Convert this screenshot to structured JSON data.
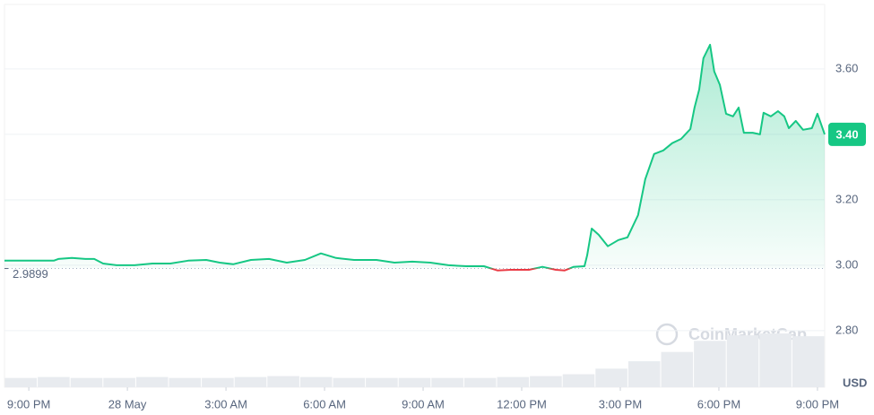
{
  "chart_data": {
    "type": "line",
    "x": [
      -0.74,
      0.76,
      0.9,
      1.31,
      1.72,
      1.99,
      2.26,
      2.67,
      3.22,
      3.76,
      4.31,
      4.85,
      5.4,
      5.81,
      6.22,
      6.76,
      7.31,
      7.85,
      8.4,
      8.89,
      9.35,
      9.9,
      10.58,
      11.13,
      11.67,
      12.22,
      12.77,
      13.31,
      13.85,
      14.26,
      14.67,
      15.22,
      15.63,
      16.04,
      16.31,
      16.58,
      16.91,
      16.99,
      17.13,
      17.34,
      17.62,
      17.94,
      18.22,
      18.54,
      18.76,
      19.03,
      19.31,
      19.58,
      19.85,
      20.13,
      20.26,
      20.4,
      20.53,
      20.73,
      20.86,
      21.03,
      21.22,
      21.43,
      21.6,
      21.76,
      22.03,
      22.25,
      22.36,
      22.58,
      22.8,
      22.99,
      23.13,
      23.34,
      23.56,
      23.83,
      24.0,
      24.22
    ],
    "series": [
      {
        "color": "#16c784",
        "down_color": "#ea3943",
        "values": [
          3.014,
          3.014,
          3.019,
          3.022,
          3.019,
          3.019,
          3.005,
          3.0,
          3.0,
          3.005,
          3.005,
          3.014,
          3.016,
          3.008,
          3.003,
          3.016,
          3.019,
          3.008,
          3.016,
          3.036,
          3.022,
          3.016,
          3.016,
          3.008,
          3.011,
          3.008,
          3.0,
          2.997,
          2.997,
          2.984,
          2.986,
          2.986,
          2.995,
          2.986,
          2.984,
          2.995,
          2.997,
          3.03,
          3.112,
          3.093,
          3.058,
          3.077,
          3.085,
          3.153,
          3.263,
          3.34,
          3.351,
          3.373,
          3.386,
          3.416,
          3.482,
          3.537,
          3.633,
          3.674,
          3.592,
          3.551,
          3.463,
          3.455,
          3.482,
          3.405,
          3.405,
          3.4,
          3.466,
          3.455,
          3.471,
          3.455,
          3.419,
          3.441,
          3.414,
          3.419,
          3.463,
          3.4
        ]
      }
    ],
    "volume": {
      "color": "#e8ebef",
      "values": [
        10,
        11,
        10,
        10,
        11,
        10,
        10,
        11,
        12,
        11,
        10,
        10,
        10,
        10,
        10,
        11,
        12,
        14,
        20,
        28,
        38,
        50,
        56,
        58,
        55
      ]
    },
    "baseline": 2.9899,
    "current_price": {
      "value": 3.4,
      "label": "3.40"
    },
    "xlim": [
      -0.74,
      24.22
    ],
    "xticks": [
      {
        "value": 0,
        "label": "9:00 PM"
      },
      {
        "value": 3,
        "label": "28 May"
      },
      {
        "value": 6,
        "label": "3:00 AM"
      },
      {
        "value": 9,
        "label": "6:00 AM"
      },
      {
        "value": 12,
        "label": "9:00 AM"
      },
      {
        "value": 15,
        "label": "12:00 PM"
      },
      {
        "value": 18,
        "label": "3:00 PM"
      },
      {
        "value": 21,
        "label": "6:00 PM"
      },
      {
        "value": 24,
        "label": "9:00 PM"
      }
    ],
    "ylim": [
      2.627,
      3.797
    ],
    "yticks": [
      {
        "value": 2.8,
        "label": "2.80"
      },
      {
        "value": 3.0,
        "label": "3.00"
      },
      {
        "value": 3.2,
        "label": "3.20"
      },
      {
        "value": 3.4,
        "label": "3.40"
      },
      {
        "value": 3.6,
        "label": "3.60"
      }
    ],
    "grid": true,
    "currency": "USD",
    "watermark": "CoinMarketCap"
  }
}
